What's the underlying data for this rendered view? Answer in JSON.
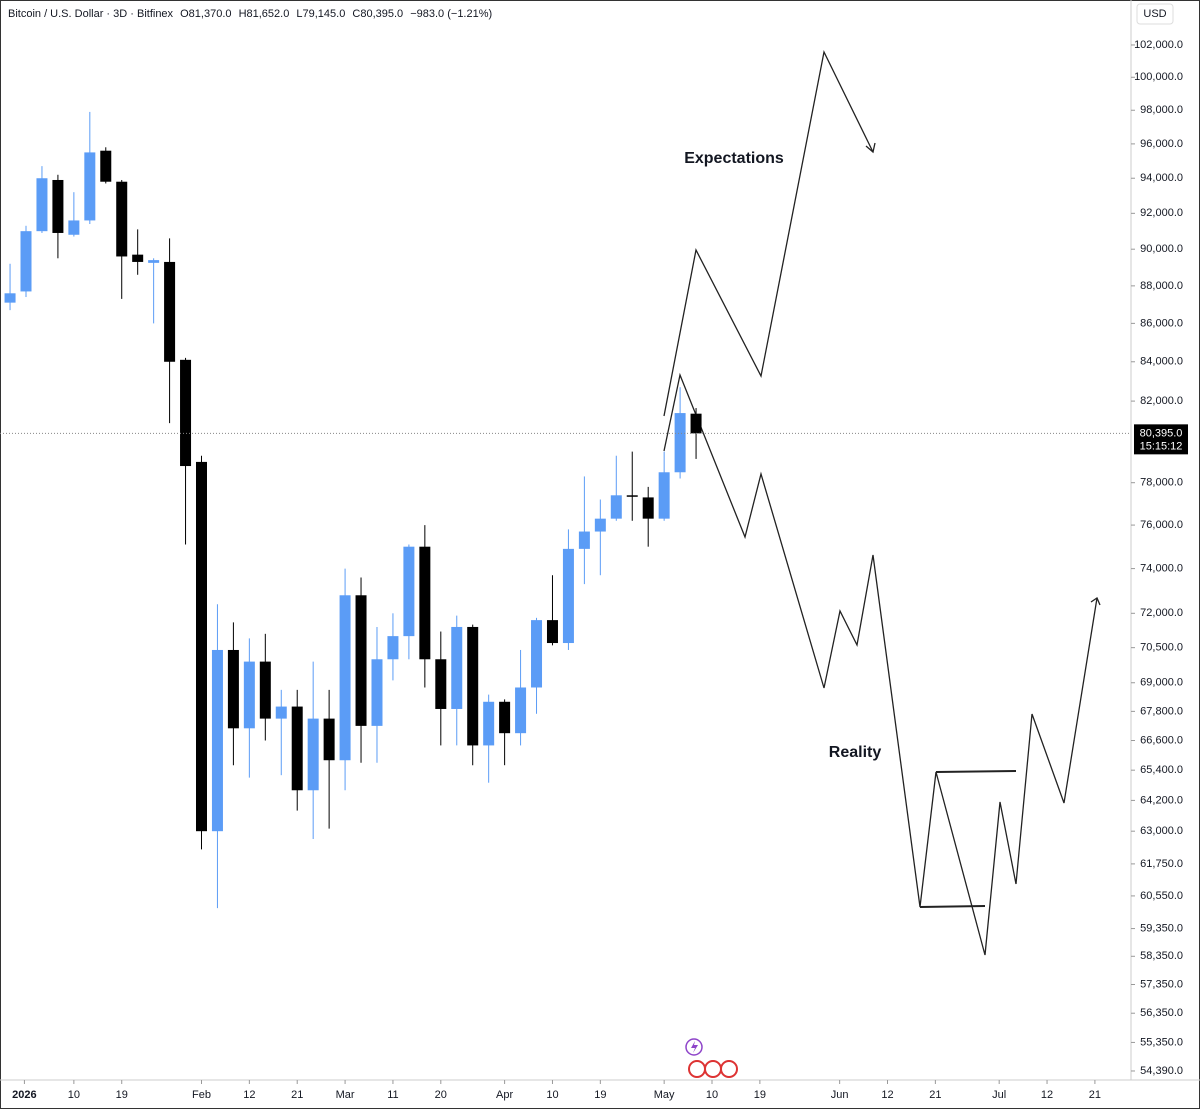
{
  "chart_data": {
    "type": "candlestick",
    "title": "Bitcoin / U.S. Dollar · 3D · Bitfinex",
    "header_values": [
      "O81,370.0",
      "H81,652.0",
      "L79,145.0",
      "C80,395.0",
      "−983.0 (−1.21%)"
    ],
    "currency": "USD",
    "x": [
      0,
      1,
      2,
      3,
      4,
      5,
      6,
      7,
      8,
      9,
      10,
      11,
      12,
      13,
      14,
      15,
      16,
      17,
      18,
      19,
      20,
      21,
      22,
      23,
      24,
      25,
      26,
      27,
      28,
      29,
      30,
      31,
      32,
      33,
      34,
      35,
      36,
      37,
      38,
      39,
      40,
      41,
      42,
      43
    ],
    "open": [
      87100,
      87700,
      91000,
      93900,
      90800,
      91600,
      95600,
      93800,
      89700,
      89250,
      89300,
      84100,
      79000,
      63000,
      70400,
      67100,
      69900,
      67500,
      68000,
      64600,
      67500,
      65800,
      72800,
      67200,
      70000,
      71000,
      75000,
      70000,
      67900,
      71400,
      66400,
      68200,
      66900,
      68800,
      71700,
      70700,
      74900,
      75700,
      76300,
      77400,
      77300,
      76300,
      78500,
      81370
    ],
    "high": [
      89200,
      91300,
      94700,
      94200,
      93200,
      97900,
      95800,
      93900,
      91100,
      89500,
      90600,
      84200,
      79300,
      72400,
      71600,
      70900,
      71100,
      68700,
      68700,
      69900,
      68700,
      74000,
      73600,
      71400,
      72000,
      75100,
      76000,
      71200,
      71900,
      71500,
      68500,
      68300,
      70400,
      71800,
      73700,
      75800,
      78300,
      77200,
      79300,
      79500,
      77800,
      79500,
      82700,
      81652
    ],
    "low": [
      86700,
      87400,
      90900,
      89500,
      90700,
      91400,
      93700,
      87300,
      88600,
      86000,
      80900,
      75100,
      62300,
      60100,
      65600,
      65100,
      66600,
      65200,
      63800,
      62700,
      63100,
      64600,
      65700,
      65700,
      69100,
      70000,
      68800,
      66400,
      66400,
      65600,
      64900,
      65600,
      66400,
      67700,
      70600,
      70400,
      73300,
      73700,
      76200,
      76200,
      75000,
      76200,
      78200,
      79145
    ],
    "close": [
      87600,
      91000,
      94000,
      90900,
      91600,
      95500,
      93800,
      89600,
      89300,
      89400,
      84000,
      78800,
      63000,
      70400,
      67100,
      69900,
      67500,
      68000,
      64600,
      67500,
      65800,
      72800,
      67200,
      70000,
      71000,
      75000,
      70000,
      67900,
      71400,
      66400,
      68200,
      66900,
      68800,
      71700,
      70700,
      74900,
      75700,
      76300,
      77400,
      77350,
      76300,
      78500,
      81400,
      80395
    ],
    "up_color": "#5b9cf6",
    "down_color": "#000000",
    "log_scale": true,
    "grid": false,
    "xlim": [
      -0.63,
      70.2
    ],
    "ylim": [
      54090,
      104850
    ],
    "xticks": [
      {
        "value": 0.9,
        "label": "2026"
      },
      {
        "value": 4,
        "label": "10"
      },
      {
        "value": 7,
        "label": "19"
      },
      {
        "value": 12,
        "label": "Feb"
      },
      {
        "value": 15,
        "label": "12"
      },
      {
        "value": 18,
        "label": "21"
      },
      {
        "value": 21,
        "label": "Mar"
      },
      {
        "value": 24,
        "label": "11"
      },
      {
        "value": 27,
        "label": "20"
      },
      {
        "value": 31,
        "label": "Apr"
      },
      {
        "value": 34,
        "label": "10"
      },
      {
        "value": 37,
        "label": "19"
      },
      {
        "value": 41,
        "label": "May"
      },
      {
        "value": 44,
        "label": "10"
      },
      {
        "value": 47,
        "label": "19"
      },
      {
        "value": 52,
        "label": "Jun"
      },
      {
        "value": 55,
        "label": "12"
      },
      {
        "value": 58,
        "label": "21"
      },
      {
        "value": 62,
        "label": "Jul"
      },
      {
        "value": 65,
        "label": "12"
      },
      {
        "value": 68,
        "label": "21"
      }
    ],
    "yticks": [
      {
        "value": 102000,
        "label": "102,000.0"
      },
      {
        "value": 100000,
        "label": "100,000.0"
      },
      {
        "value": 98000,
        "label": "98,000.0"
      },
      {
        "value": 96000,
        "label": "96,000.0"
      },
      {
        "value": 94000,
        "label": "94,000.0"
      },
      {
        "value": 92000,
        "label": "92,000.0"
      },
      {
        "value": 90000,
        "label": "90,000.0"
      },
      {
        "value": 88000,
        "label": "88,000.0"
      },
      {
        "value": 86000,
        "label": "86,000.0"
      },
      {
        "value": 84000,
        "label": "84,000.0"
      },
      {
        "value": 82000,
        "label": "82,000.0"
      },
      {
        "value": 78000,
        "label": "78,000.0"
      },
      {
        "value": 76000,
        "label": "76,000.0"
      },
      {
        "value": 74000,
        "label": "74,000.0"
      },
      {
        "value": 72000,
        "label": "72,000.0"
      },
      {
        "value": 70500,
        "label": "70,500.0"
      },
      {
        "value": 69000,
        "label": "69,000.0"
      },
      {
        "value": 67800,
        "label": "67,800.0"
      },
      {
        "value": 66600,
        "label": "66,600.0"
      },
      {
        "value": 65400,
        "label": "65,400.0"
      },
      {
        "value": 64200,
        "label": "64,200.0"
      },
      {
        "value": 63000,
        "label": "63,000.0"
      },
      {
        "value": 61750,
        "label": "61,750.0"
      },
      {
        "value": 60550,
        "label": "60,550.0"
      },
      {
        "value": 59350,
        "label": "59,350.0"
      },
      {
        "value": 58350,
        "label": "58,350.0"
      },
      {
        "value": 57350,
        "label": "57,350.0"
      },
      {
        "value": 56350,
        "label": "56,350.0"
      },
      {
        "value": 55350,
        "label": "55,350.0"
      },
      {
        "value": 54390,
        "label": "54,390.0"
      }
    ],
    "last_price": {
      "value": 80395,
      "label": "80,395.0"
    },
    "countdown": "15:15:12",
    "annotations": [
      "Expectations",
      "Reality"
    ]
  }
}
